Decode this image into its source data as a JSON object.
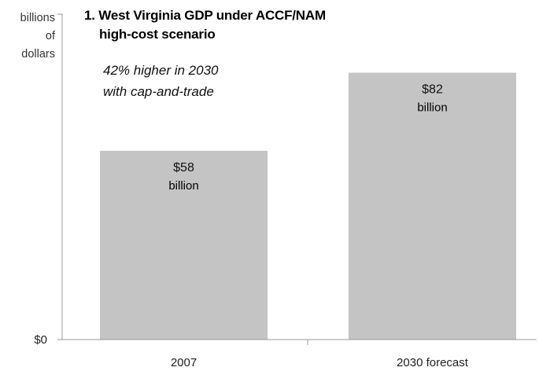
{
  "chart_data": {
    "type": "bar",
    "title_line1": "1. West Virginia GDP under ACCF/NAM",
    "title_line2": "high-cost scenario",
    "ylabel": [
      "billions",
      "of",
      "dollars"
    ],
    "annotation_line1": "42% higher in 2030",
    "annotation_line2": "with cap-and-trade",
    "categories": [
      "2007",
      "2030 forecast"
    ],
    "values": [
      58,
      82
    ],
    "value_labels": [
      "$58",
      "$82"
    ],
    "unit_label": "billion",
    "y_tick_label": "$0",
    "ylim": [
      0,
      100
    ],
    "bar_color": "#c4c4c4",
    "grid": false
  }
}
